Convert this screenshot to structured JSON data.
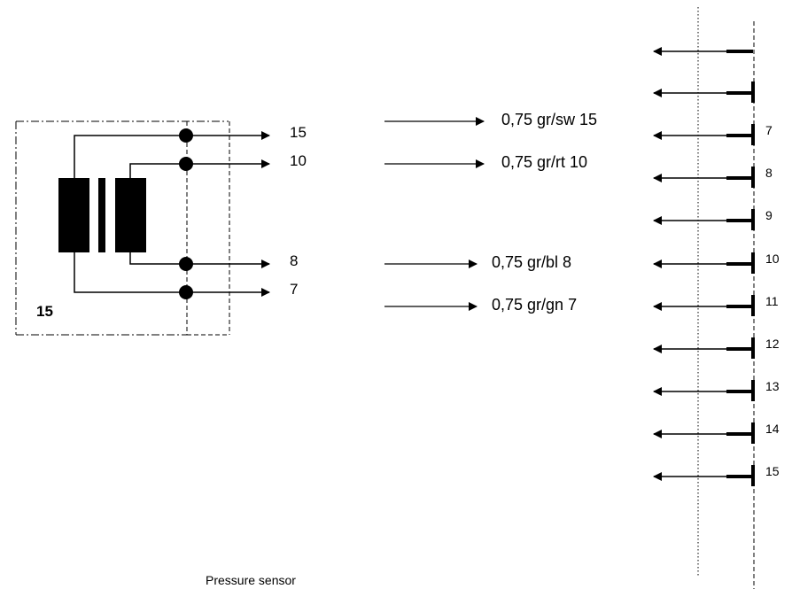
{
  "diagram": {
    "title": "Pressure sensor",
    "device_number": "15",
    "device_pins": [
      "15",
      "10",
      "8",
      "7"
    ],
    "wires": [
      {
        "label": "0,75 gr/sw 15",
        "pin": "15"
      },
      {
        "label": "0,75 gr/rt 10",
        "pin": "10"
      },
      {
        "label": "0,75 gr/bl 8",
        "pin": "8"
      },
      {
        "label": "0,75 gr/gn 7",
        "pin": "7"
      }
    ],
    "connector_pins": [
      "7",
      "8",
      "9",
      "10",
      "11",
      "12",
      "13",
      "14",
      "15"
    ]
  },
  "colors": {
    "line": "#000000",
    "background": "#ffffff"
  }
}
